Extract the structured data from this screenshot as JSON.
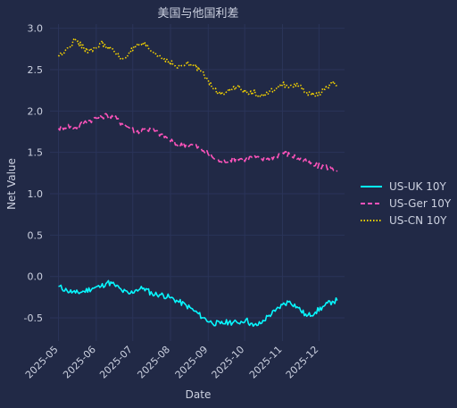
{
  "chart_data": {
    "type": "line",
    "title": "美国与他国利差",
    "xlabel": "Date",
    "ylabel": "Net Value",
    "ylim": [
      -0.78,
      3.05
    ],
    "yticks": [
      -0.5,
      0.0,
      0.5,
      1.0,
      1.5,
      2.0,
      2.5,
      3.0
    ],
    "xticks": [
      "2025-05",
      "2025-06",
      "2025-07",
      "2025-08",
      "2025-09",
      "2025-10",
      "2025-11",
      "2025-12"
    ],
    "grid": true,
    "legend_position": "right",
    "series": [
      {
        "name": "US-UK 10Y",
        "style": "solid",
        "color": "#08f7fe",
        "points": [
          [
            "2025-05-01",
            -0.12
          ],
          [
            "2025-05-08",
            -0.17
          ],
          [
            "2025-05-15",
            -0.2
          ],
          [
            "2025-05-22",
            -0.18
          ],
          [
            "2025-05-29",
            -0.14
          ],
          [
            "2025-06-05",
            -0.12
          ],
          [
            "2025-06-10",
            -0.07
          ],
          [
            "2025-06-16",
            -0.1
          ],
          [
            "2025-06-22",
            -0.17
          ],
          [
            "2025-06-28",
            -0.21
          ],
          [
            "2025-07-04",
            -0.16
          ],
          [
            "2025-07-10",
            -0.14
          ],
          [
            "2025-07-17",
            -0.21
          ],
          [
            "2025-07-24",
            -0.22
          ],
          [
            "2025-07-31",
            -0.25
          ],
          [
            "2025-08-07",
            -0.3
          ],
          [
            "2025-08-14",
            -0.35
          ],
          [
            "2025-08-21",
            -0.42
          ],
          [
            "2025-08-28",
            -0.5
          ],
          [
            "2025-09-04",
            -0.56
          ],
          [
            "2025-09-11",
            -0.57
          ],
          [
            "2025-09-18",
            -0.55
          ],
          [
            "2025-09-25",
            -0.56
          ],
          [
            "2025-10-02",
            -0.52
          ],
          [
            "2025-10-08",
            -0.6
          ],
          [
            "2025-10-14",
            -0.57
          ],
          [
            "2025-10-20",
            -0.48
          ],
          [
            "2025-10-26",
            -0.42
          ],
          [
            "2025-11-01",
            -0.34
          ],
          [
            "2025-11-07",
            -0.3
          ],
          [
            "2025-11-14",
            -0.38
          ],
          [
            "2025-11-21",
            -0.48
          ],
          [
            "2025-11-28",
            -0.43
          ],
          [
            "2025-12-05",
            -0.36
          ],
          [
            "2025-12-12",
            -0.3
          ],
          [
            "2025-12-16",
            -0.29
          ]
        ]
      },
      {
        "name": "US-Ger 10Y",
        "style": "dashed",
        "color": "#fe53bb",
        "points": [
          [
            "2025-05-01",
            1.79
          ],
          [
            "2025-05-08",
            1.82
          ],
          [
            "2025-05-15",
            1.8
          ],
          [
            "2025-05-22",
            1.86
          ],
          [
            "2025-05-29",
            1.9
          ],
          [
            "2025-06-05",
            1.93
          ],
          [
            "2025-06-10",
            1.95
          ],
          [
            "2025-06-16",
            1.92
          ],
          [
            "2025-06-22",
            1.85
          ],
          [
            "2025-06-28",
            1.8
          ],
          [
            "2025-07-04",
            1.75
          ],
          [
            "2025-07-10",
            1.78
          ],
          [
            "2025-07-17",
            1.77
          ],
          [
            "2025-07-24",
            1.72
          ],
          [
            "2025-07-31",
            1.66
          ],
          [
            "2025-08-07",
            1.58
          ],
          [
            "2025-08-14",
            1.6
          ],
          [
            "2025-08-21",
            1.58
          ],
          [
            "2025-08-28",
            1.52
          ],
          [
            "2025-09-04",
            1.45
          ],
          [
            "2025-09-11",
            1.39
          ],
          [
            "2025-09-18",
            1.41
          ],
          [
            "2025-09-25",
            1.43
          ],
          [
            "2025-10-02",
            1.42
          ],
          [
            "2025-10-08",
            1.45
          ],
          [
            "2025-10-14",
            1.41
          ],
          [
            "2025-10-20",
            1.43
          ],
          [
            "2025-10-26",
            1.45
          ],
          [
            "2025-11-01",
            1.5
          ],
          [
            "2025-11-07",
            1.47
          ],
          [
            "2025-11-14",
            1.43
          ],
          [
            "2025-11-21",
            1.38
          ],
          [
            "2025-11-28",
            1.34
          ],
          [
            "2025-12-05",
            1.33
          ],
          [
            "2025-12-12",
            1.31
          ],
          [
            "2025-12-16",
            1.28
          ]
        ]
      },
      {
        "name": "US-CN 10Y",
        "style": "dotted",
        "color": "#f5d300",
        "points": [
          [
            "2025-05-01",
            2.66
          ],
          [
            "2025-05-08",
            2.76
          ],
          [
            "2025-05-15",
            2.86
          ],
          [
            "2025-05-22",
            2.75
          ],
          [
            "2025-05-29",
            2.72
          ],
          [
            "2025-06-05",
            2.83
          ],
          [
            "2025-06-10",
            2.78
          ],
          [
            "2025-06-16",
            2.71
          ],
          [
            "2025-06-22",
            2.62
          ],
          [
            "2025-06-28",
            2.7
          ],
          [
            "2025-07-04",
            2.78
          ],
          [
            "2025-07-10",
            2.8
          ],
          [
            "2025-07-17",
            2.72
          ],
          [
            "2025-07-24",
            2.65
          ],
          [
            "2025-07-31",
            2.6
          ],
          [
            "2025-08-07",
            2.52
          ],
          [
            "2025-08-14",
            2.57
          ],
          [
            "2025-08-21",
            2.54
          ],
          [
            "2025-08-28",
            2.47
          ],
          [
            "2025-09-04",
            2.28
          ],
          [
            "2025-09-11",
            2.2
          ],
          [
            "2025-09-18",
            2.27
          ],
          [
            "2025-09-25",
            2.29
          ],
          [
            "2025-10-02",
            2.22
          ],
          [
            "2025-10-08",
            2.23
          ],
          [
            "2025-10-14",
            2.17
          ],
          [
            "2025-10-20",
            2.2
          ],
          [
            "2025-10-26",
            2.27
          ],
          [
            "2025-11-01",
            2.32
          ],
          [
            "2025-11-07",
            2.3
          ],
          [
            "2025-11-14",
            2.3
          ],
          [
            "2025-11-21",
            2.22
          ],
          [
            "2025-11-28",
            2.18
          ],
          [
            "2025-12-05",
            2.26
          ],
          [
            "2025-12-12",
            2.33
          ],
          [
            "2025-12-16",
            2.31
          ]
        ]
      }
    ]
  }
}
